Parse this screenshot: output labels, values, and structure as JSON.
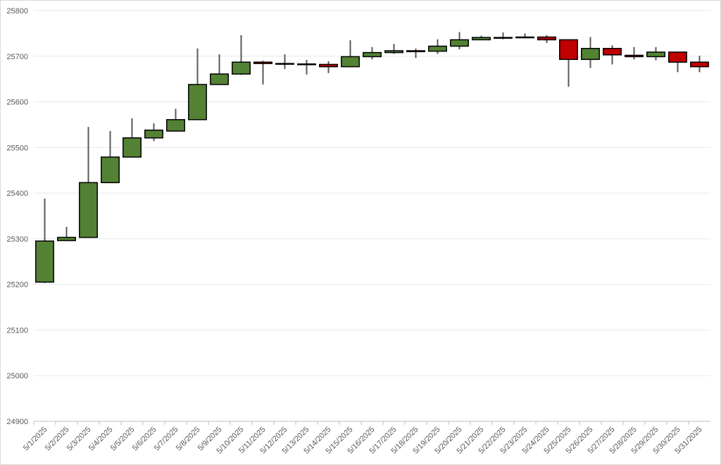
{
  "chart_data": {
    "type": "candlestick",
    "categories": [
      "5/1/2025",
      "5/2/2025",
      "5/3/2025",
      "5/4/2025",
      "5/5/2025",
      "5/6/2025",
      "5/7/2025",
      "5/8/2025",
      "5/9/2025",
      "5/10/2025",
      "5/11/2025",
      "5/12/2025",
      "5/13/2025",
      "5/14/2025",
      "5/15/2025",
      "5/16/2025",
      "5/17/2025",
      "5/18/2025",
      "5/19/2025",
      "5/20/2025",
      "5/21/2025",
      "5/22/2025",
      "5/23/2025",
      "5/24/2025",
      "5/25/2025",
      "5/26/2025",
      "5/27/2025",
      "5/28/2025",
      "5/29/2025",
      "5/30/2025",
      "5/31/2025"
    ],
    "open": [
      25205,
      25296,
      25303,
      25423,
      25479,
      25521,
      25536,
      25561,
      25638,
      25661,
      25687,
      25684,
      25683,
      25682,
      25677,
      25699,
      25708,
      25710,
      25711,
      25722,
      25736,
      25740,
      25741,
      25742,
      25736,
      25693,
      25717,
      25702,
      25699,
      25709,
      25687
    ],
    "high": [
      25388,
      25326,
      25545,
      25536,
      25564,
      25553,
      25585,
      25717,
      25704,
      25746,
      25690,
      25704,
      25692,
      25689,
      25735,
      25720,
      25727,
      25717,
      25737,
      25753,
      25745,
      25752,
      25750,
      25746,
      25737,
      25742,
      25724,
      25720,
      25720,
      25710,
      25701
    ],
    "low": [
      25203,
      25295,
      25302,
      25422,
      25478,
      25514,
      25535,
      25560,
      25637,
      25659,
      25638,
      25672,
      25660,
      25663,
      25676,
      25693,
      25705,
      25696,
      25705,
      25715,
      25735,
      25737,
      25739,
      25729,
      25633,
      25674,
      25682,
      25693,
      25691,
      25665,
      25665
    ],
    "close": [
      25295,
      25303,
      25423,
      25479,
      25521,
      25538,
      25561,
      25638,
      25661,
      25687,
      25684,
      25683,
      25682,
      25677,
      25699,
      25708,
      25712,
      25712,
      25722,
      25736,
      25741,
      25741,
      25742,
      25736,
      25693,
      25717,
      25703,
      25699,
      25709,
      25687,
      25677
    ],
    "up_color": "#548235",
    "down_color": "#c00000",
    "ylim": [
      24900,
      25800
    ],
    "yticks": [
      24900,
      25000,
      25100,
      25200,
      25300,
      25400,
      25500,
      25600,
      25700,
      25800
    ],
    "grid": true
  }
}
